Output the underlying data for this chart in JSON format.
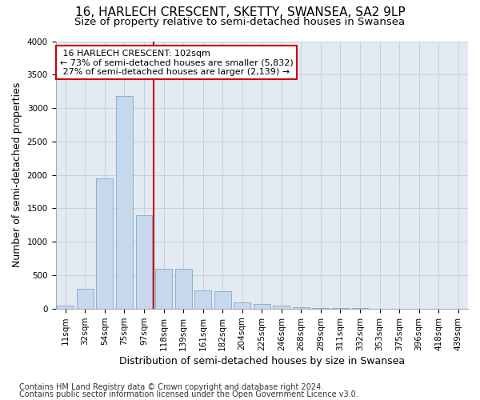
{
  "title": "16, HARLECH CRESCENT, SKETTY, SWANSEA, SA2 9LP",
  "subtitle": "Size of property relative to semi-detached houses in Swansea",
  "xlabel": "Distribution of semi-detached houses by size in Swansea",
  "ylabel": "Number of semi-detached properties",
  "footer1": "Contains HM Land Registry data © Crown copyright and database right 2024.",
  "footer2": "Contains public sector information licensed under the Open Government Licence v3.0.",
  "property_label": "16 HARLECH CRESCENT: 102sqm",
  "pct_smaller": 73,
  "count_smaller": 5832,
  "pct_larger": 27,
  "count_larger": 2139,
  "bar_color": "#c8d8ec",
  "bar_edge_color": "#7aaac8",
  "vline_color": "#cc0000",
  "annotation_box_color": "#cc0000",
  "categories": [
    "11sqm",
    "32sqm",
    "54sqm",
    "75sqm",
    "97sqm",
    "118sqm",
    "139sqm",
    "161sqm",
    "182sqm",
    "204sqm",
    "225sqm",
    "246sqm",
    "268sqm",
    "289sqm",
    "311sqm",
    "332sqm",
    "353sqm",
    "375sqm",
    "396sqm",
    "418sqm",
    "439sqm"
  ],
  "values": [
    50,
    300,
    1950,
    3180,
    1400,
    600,
    600,
    270,
    265,
    95,
    70,
    45,
    25,
    10,
    5,
    3,
    2,
    1,
    1,
    0,
    0
  ],
  "ylim": [
    0,
    4000
  ],
  "yticks": [
    0,
    500,
    1000,
    1500,
    2000,
    2500,
    3000,
    3500,
    4000
  ],
  "grid_color": "#c8d0dc",
  "bg_color": "#e4eaf2",
  "title_fontsize": 11,
  "subtitle_fontsize": 9.5,
  "axis_label_fontsize": 9,
  "tick_fontsize": 7.5,
  "footer_fontsize": 7,
  "ann_fontsize": 8
}
